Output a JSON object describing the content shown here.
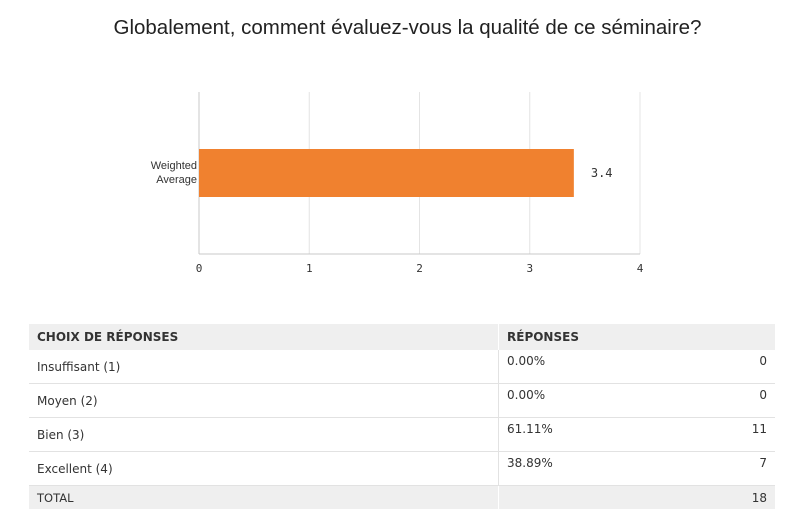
{
  "chart_data": {
    "type": "bar",
    "orientation": "horizontal",
    "title": "Globalement, comment évaluez-vous la qualité de ce séminaire?",
    "categories": [
      "Weighted Average"
    ],
    "values": [
      3.4
    ],
    "xlim": [
      0,
      4
    ],
    "xticks": [
      "0",
      "1",
      "2",
      "3",
      "4"
    ],
    "data_labels": [
      "3.4"
    ],
    "bar_color": "#f0812f",
    "grid": true
  },
  "table": {
    "headers": [
      "CHOIX DE RÉPONSES",
      "RÉPONSES",
      ""
    ],
    "rows": [
      {
        "choice": "Insuffisant (1)",
        "percent": "0.00%",
        "count": "0"
      },
      {
        "choice": "Moyen (2)",
        "percent": "0.00%",
        "count": "0"
      },
      {
        "choice": "Bien (3)",
        "percent": "61.11%",
        "count": "11"
      },
      {
        "choice": "Excellent (4)",
        "percent": "38.89%",
        "count": "7"
      }
    ],
    "total": {
      "label": "TOTAL",
      "count": "18"
    }
  }
}
